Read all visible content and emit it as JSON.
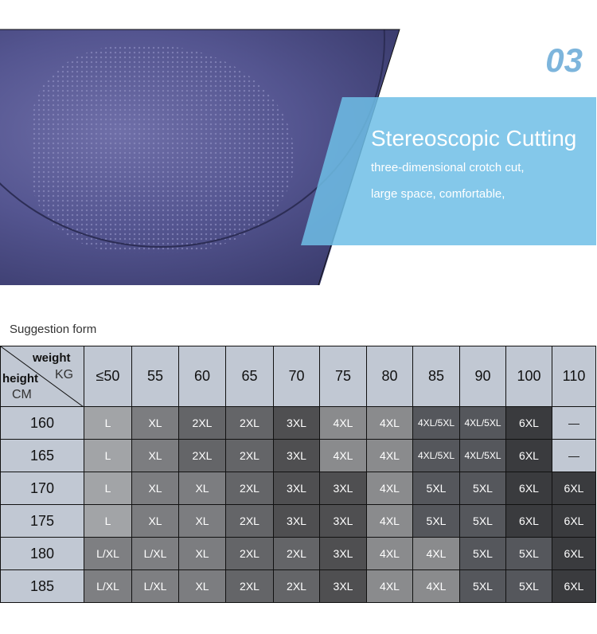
{
  "feature": {
    "number": "03",
    "title": "Stereoscopic Cutting",
    "lines": [
      "three-dimensional crotch cut,",
      "large space, comfortable,"
    ]
  },
  "colors": {
    "accent": "#7db5dc",
    "panel": "#6ebee6",
    "header": "#c1c8d3"
  },
  "size_table": {
    "caption": "Suggestion form",
    "corner": {
      "weight": "weight",
      "kg": "KG",
      "height": "height",
      "cm": "CM"
    },
    "weights": [
      "≤50",
      "55",
      "60",
      "65",
      "70",
      "75",
      "80",
      "85",
      "90",
      "100",
      "110"
    ],
    "rows": [
      {
        "height": "160",
        "sizes": [
          "L",
          "XL",
          "2XL",
          "2XL",
          "3XL",
          "4XL",
          "4XL",
          "4XL/5XL",
          "4XL/5XL",
          "6XL",
          "—"
        ]
      },
      {
        "height": "165",
        "sizes": [
          "L",
          "XL",
          "2XL",
          "2XL",
          "3XL",
          "4XL",
          "4XL",
          "4XL/5XL",
          "4XL/5XL",
          "6XL",
          "—"
        ]
      },
      {
        "height": "170",
        "sizes": [
          "L",
          "XL",
          "XL",
          "2XL",
          "3XL",
          "3XL",
          "4XL",
          "5XL",
          "5XL",
          "6XL",
          "6XL"
        ]
      },
      {
        "height": "175",
        "sizes": [
          "L",
          "XL",
          "XL",
          "2XL",
          "3XL",
          "3XL",
          "4XL",
          "5XL",
          "5XL",
          "6XL",
          "6XL"
        ]
      },
      {
        "height": "180",
        "sizes": [
          "L/XL",
          "L/XL",
          "XL",
          "2XL",
          "2XL",
          "3XL",
          "4XL",
          "4XL",
          "5XL",
          "5XL",
          "6XL"
        ]
      },
      {
        "height": "185",
        "sizes": [
          "L/XL",
          "L/XL",
          "XL",
          "2XL",
          "2XL",
          "3XL",
          "4XL",
          "4XL",
          "5XL",
          "5XL",
          "6XL"
        ]
      }
    ],
    "size_colors": {
      "L": "#a2a4a7",
      "L/XL": "#7e7f82",
      "XL": "#7c7d80",
      "2XL": "#646568",
      "3XL": "#4f4f51",
      "4XL": "#8a8b8d",
      "4XL/5XL": "#55575c",
      "5XL": "#55575c",
      "6XL": "#3a3b3e",
      "—": "#c1c8d3"
    }
  }
}
